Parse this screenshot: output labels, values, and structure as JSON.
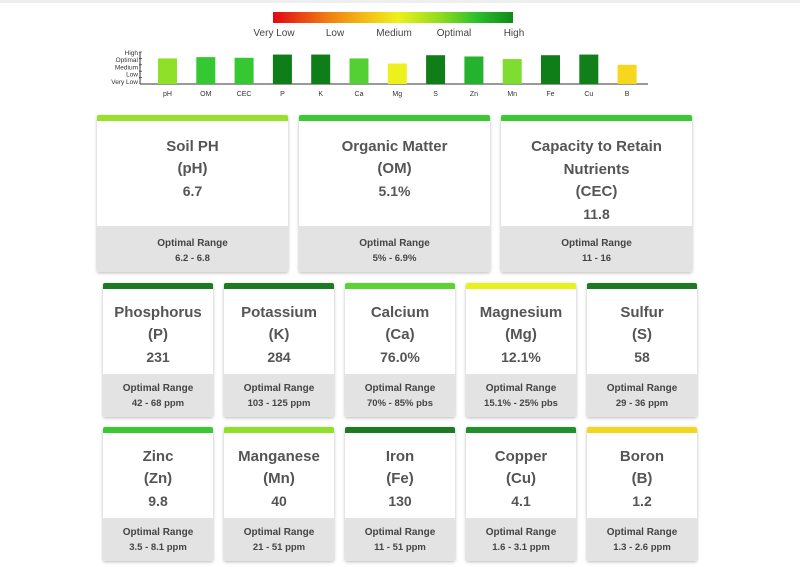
{
  "legend": {
    "labels": [
      "Very Low",
      "Low",
      "Medium",
      "Optimal",
      "High"
    ]
  },
  "chart_data": {
    "type": "bar",
    "title": "",
    "categories": [
      "pH",
      "OM",
      "CEC",
      "P",
      "K",
      "Ca",
      "Mg",
      "S",
      "Zn",
      "Mn",
      "Fe",
      "Cu",
      "B"
    ],
    "values": [
      4,
      4.2,
      4.1,
      4.6,
      4.6,
      4,
      3.2,
      4.5,
      4.3,
      3.9,
      4.5,
      4.6,
      3
    ],
    "value_scale": "1 = Very Low, 2 = Low, 3 = Medium, 4 = Optimal, 5 = High",
    "colors": [
      "#8ee028",
      "#35c832",
      "#35c832",
      "#0f7e18",
      "#0f7e18",
      "#55d034",
      "#eef01e",
      "#0f7e18",
      "#25b22c",
      "#7fdc30",
      "#0f7e18",
      "#127f1a",
      "#f7d61e"
    ],
    "y_ticks": [
      "High",
      "Optimal",
      "Medium",
      "Low",
      "Very Low"
    ],
    "ylim": [
      0,
      5
    ]
  },
  "cards_row1": [
    {
      "name": "Soil PH",
      "abbr": "(pH)",
      "value": "6.7",
      "range_label": "Optimal Range",
      "range": "6.2 - 6.8",
      "color": "#9ae02a"
    },
    {
      "name": "Organic Matter",
      "abbr": "(OM)",
      "value": "5.1%",
      "range_label": "Optimal Range",
      "range": "5% - 6.9%",
      "color": "#3cc834"
    },
    {
      "name": "Capacity to Retain Nutrients",
      "abbr": "(CEC)",
      "value": "11.8",
      "range_label": "Optimal Range",
      "range": "11 - 16",
      "color": "#3cc834"
    }
  ],
  "cards_row2": [
    {
      "name": "Phosphorus",
      "abbr": "(P)",
      "value": "231",
      "range_label": "Optimal Range",
      "range": "42 - 68 ppm",
      "color": "#1e7a22"
    },
    {
      "name": "Potassium",
      "abbr": "(K)",
      "value": "284",
      "range_label": "Optimal Range",
      "range": "103 - 125 ppm",
      "color": "#1e7a22"
    },
    {
      "name": "Calcium",
      "abbr": "(Ca)",
      "value": "76.0%",
      "range_label": "Optimal Range",
      "range": "70% - 85% pbs",
      "color": "#5ed234"
    },
    {
      "name": "Magnesium",
      "abbr": "(Mg)",
      "value": "12.1%",
      "range_label": "Optimal Range",
      "range": "15.1% - 25% pbs",
      "color": "#e8f01e"
    },
    {
      "name": "Sulfur",
      "abbr": "(S)",
      "value": "58",
      "range_label": "Optimal Range",
      "range": "29 - 36 ppm",
      "color": "#1e7a22"
    }
  ],
  "cards_row3": [
    {
      "name": "Zinc",
      "abbr": "(Zn)",
      "value": "9.8",
      "range_label": "Optimal Range",
      "range": "3.5 - 8.1 ppm",
      "color": "#3cc834"
    },
    {
      "name": "Manganese",
      "abbr": "(Mn)",
      "value": "40",
      "range_label": "Optimal Range",
      "range": "21 - 51 ppm",
      "color": "#8ee028"
    },
    {
      "name": "Iron",
      "abbr": "(Fe)",
      "value": "130",
      "range_label": "Optimal Range",
      "range": "11 - 51 ppm",
      "color": "#1e7a22"
    },
    {
      "name": "Copper",
      "abbr": "(Cu)",
      "value": "4.1",
      "range_label": "Optimal Range",
      "range": "1.6 - 3.1 ppm",
      "color": "#22902a"
    },
    {
      "name": "Boron",
      "abbr": "(B)",
      "value": "1.2",
      "range_label": "Optimal Range",
      "range": "1.3 - 2.6 ppm",
      "color": "#f5d51e"
    }
  ]
}
